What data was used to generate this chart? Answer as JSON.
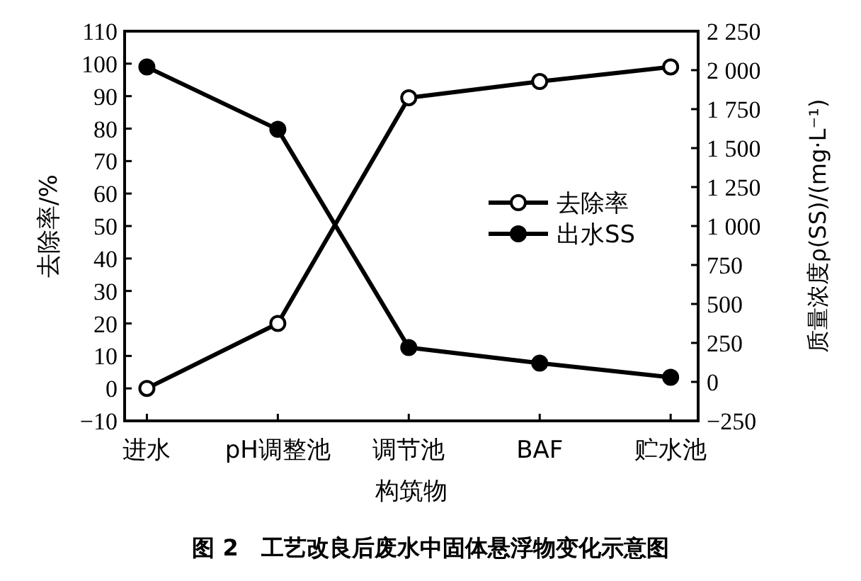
{
  "chart_data": {
    "type": "line",
    "title": "图 2　工艺改良后废水中固体悬浮物变化示意图",
    "xlabel": "构筑物",
    "ylabel": "去除率/%",
    "y2label": "质量浓度ρ(SS)/(mg·L⁻¹)",
    "categories": [
      "进水",
      "pH调整池",
      "调节池",
      "BAF",
      "贮水池"
    ],
    "series": [
      {
        "name": "去除率",
        "color": "#000000",
        "values": [
          0,
          20,
          89.5,
          94.5,
          99
        ],
        "marker": "circle"
      },
      {
        "name": "出水SS",
        "color": "#000000",
        "values": [
          2020,
          1620,
          220,
          120,
          30
        ],
        "axis": "y2",
        "marker": "circle"
      }
    ],
    "ylim": [
      -10,
      110
    ],
    "yticks": [
      {
        "value": -10,
        "label": "−10"
      },
      0,
      10,
      20,
      30,
      40,
      50,
      60,
      70,
      80,
      90,
      100,
      110
    ],
    "y2lim": [
      -250,
      2250
    ],
    "y2ticks": [
      {
        "value": -250,
        "label": "−250"
      },
      0,
      250,
      500,
      750,
      {
        "value": 1000,
        "label": "1 000"
      },
      {
        "value": 1250,
        "label": "1 250"
      },
      {
        "value": 1500,
        "label": "1 500"
      },
      {
        "value": 1750,
        "label": "1 750"
      },
      {
        "value": 2000,
        "label": "2 000"
      },
      {
        "value": 2250,
        "label": "2 250"
      }
    ],
    "legend": "right",
    "grid": false
  }
}
